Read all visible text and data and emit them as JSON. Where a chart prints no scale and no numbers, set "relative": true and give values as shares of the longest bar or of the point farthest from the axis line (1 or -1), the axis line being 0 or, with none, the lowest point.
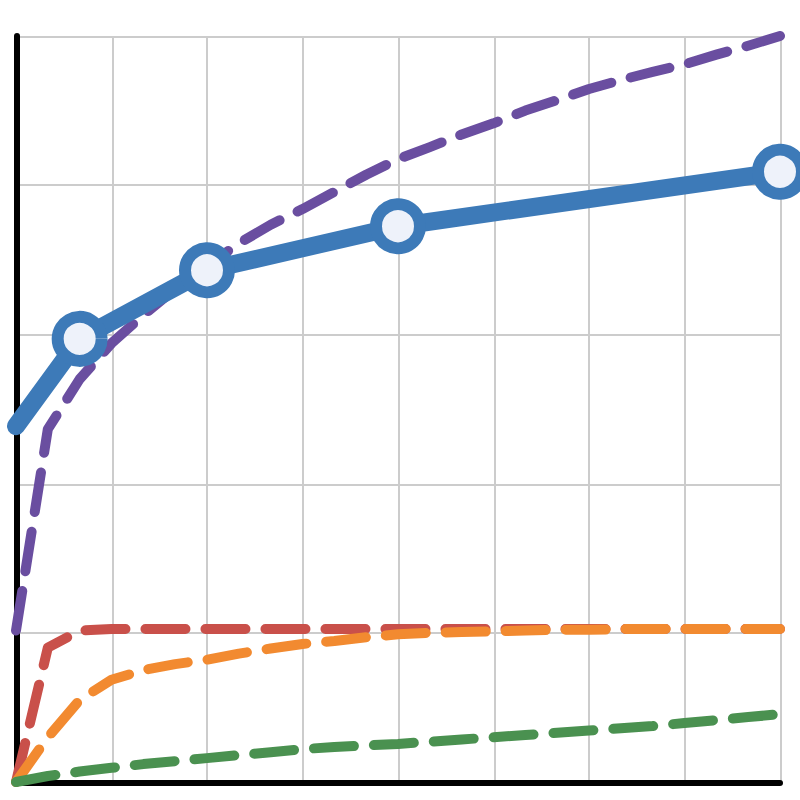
{
  "chart_data": {
    "type": "line",
    "relative": true,
    "grid": true,
    "categories": [
      null,
      null,
      null,
      null,
      null,
      null,
      null,
      null,
      null,
      null,
      null,
      null,
      null,
      null,
      null,
      null,
      null,
      null,
      null,
      null,
      null,
      null,
      null,
      null,
      null
    ],
    "series": [
      {
        "color": "#c9504a",
        "line_style": "dashed",
        "marker": "none",
        "values": [
          0,
          0.18,
          0.203,
          0.205,
          0.205,
          0.205,
          0.205,
          0.205,
          0.205,
          0.205,
          0.205,
          0.205,
          0.205,
          0.205,
          0.205,
          0.205,
          0.205,
          0.205,
          0.205,
          0.205,
          0.205,
          0.205,
          0.205,
          0.205,
          0.205
        ]
      },
      {
        "color": "#f28a30",
        "line_style": "dashed",
        "marker": "none",
        "values": [
          0,
          0.06,
          0.11,
          0.137,
          0.15,
          0.158,
          0.164,
          0.172,
          0.179,
          0.185,
          0.189,
          0.194,
          0.198,
          0.2,
          0.201,
          0.202,
          0.203,
          0.204,
          0.204,
          0.205,
          0.205,
          0.205,
          0.205,
          0.205,
          0.205
        ]
      },
      {
        "color": "#4a9150",
        "line_style": "dashed",
        "marker": "none",
        "values": [
          0,
          0.008,
          0.014,
          0.019,
          0.024,
          0.028,
          0.032,
          0.036,
          0.04,
          0.044,
          0.047,
          0.049,
          0.051,
          0.054,
          0.057,
          0.06,
          0.063,
          0.066,
          0.069,
          0.072,
          0.075,
          0.079,
          0.083,
          0.087,
          0.091
        ]
      },
      {
        "color": "#6a4ea0",
        "line_style": "dashed",
        "marker": "none",
        "values": [
          0.203,
          0.473,
          0.54,
          0.588,
          0.626,
          0.661,
          null,
          0.722,
          0.747,
          0.768,
          0.791,
          0.814,
          0.835,
          0.851,
          0.868,
          0.883,
          0.9,
          0.914,
          0.929,
          0.941,
          0.952,
          0.962,
          0.975,
          0.987,
          1
        ]
      },
      {
        "color": "#3d7ab8",
        "line_style": "solid",
        "marker": "circle",
        "values": [
          0.477,
          null,
          0.594,
          null,
          null,
          null,
          0.686,
          null,
          null,
          null,
          null,
          null,
          0.745,
          null,
          null,
          null,
          null,
          null,
          null,
          null,
          null,
          null,
          null,
          null,
          0.818
        ]
      }
    ]
  }
}
